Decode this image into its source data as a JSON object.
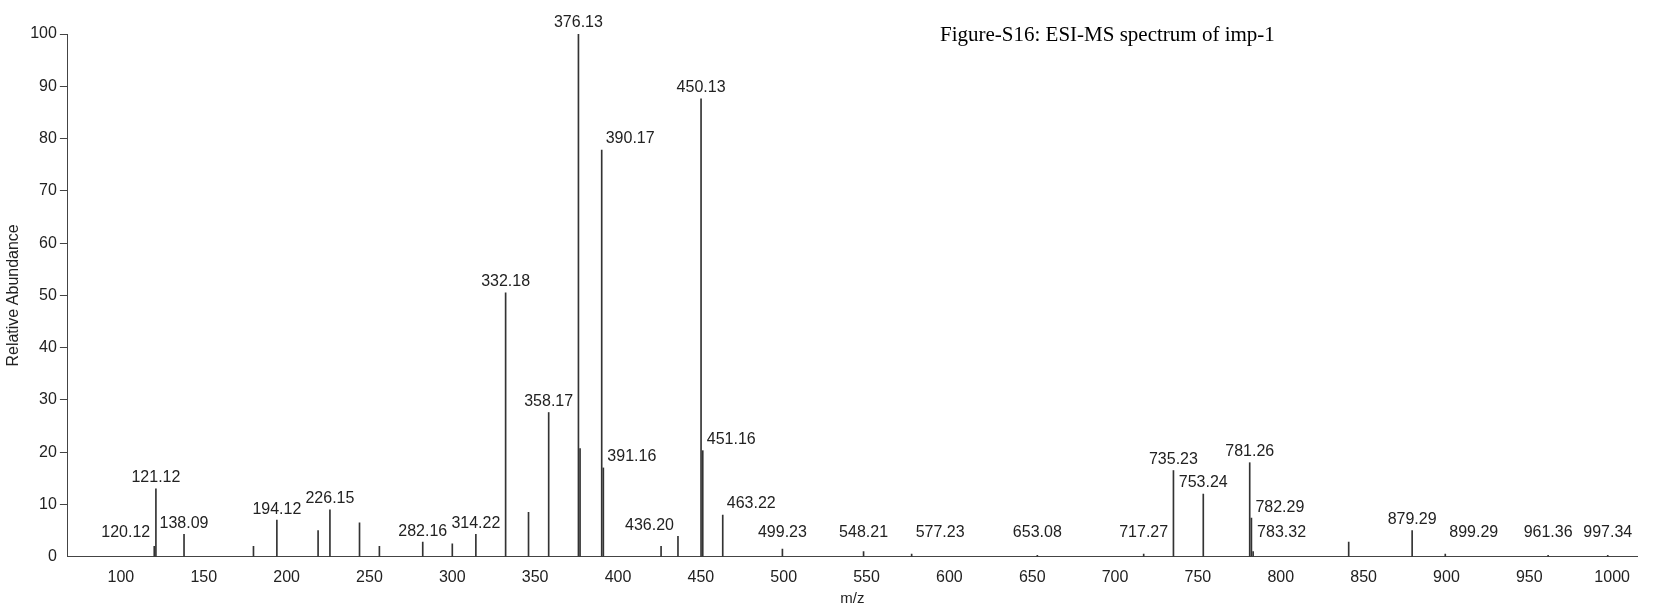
{
  "chart_data": {
    "type": "bar",
    "title": "Figure-S16: ESI-MS spectrum of imp-1",
    "xlabel": "m/z",
    "ylabel": "Relative Abundance",
    "x": [
      120.12,
      121.12,
      138.09,
      180,
      194.12,
      219,
      226.15,
      244,
      256,
      282.16,
      300,
      314.22,
      332.18,
      346,
      358.17,
      376.13,
      377.1,
      390.17,
      391.16,
      426,
      436.2,
      450.13,
      451.16,
      463.22,
      499.23,
      548.21,
      577.23,
      653.08,
      717.27,
      735.23,
      753.24,
      781.26,
      782.29,
      783.32,
      841,
      879.29,
      899.29,
      961.36,
      997.34
    ],
    "values": [
      2,
      13,
      4.3,
      2,
      7,
      5,
      9,
      6.5,
      2,
      2.8,
      2.5,
      4.3,
      50.5,
      8.5,
      27.6,
      100,
      20.7,
      77.8,
      17,
      2,
      3.9,
      87.6,
      20.3,
      8,
      1.5,
      1,
      0.5,
      0.3,
      0.5,
      16.5,
      12,
      18,
      7.4,
      1,
      2.8,
      5,
      0.5,
      0.3,
      0.3
    ],
    "color": "#333333",
    "annotations": [
      {
        "text": "120.12",
        "x": 120.12,
        "y": 2
      },
      {
        "text": "121.12",
        "x": 121.12,
        "y": 13
      },
      {
        "text": "138.09",
        "x": 138.09,
        "y": 4.3
      },
      {
        "text": "194.12",
        "x": 194.12,
        "y": 7
      },
      {
        "text": "226.15",
        "x": 226.15,
        "y": 9
      },
      {
        "text": "282.16",
        "x": 282.16,
        "y": 2.8
      },
      {
        "text": "314.22",
        "x": 314.22,
        "y": 4.3
      },
      {
        "text": "332.18",
        "x": 332.18,
        "y": 50.5
      },
      {
        "text": "358.17",
        "x": 358.17,
        "y": 27.6
      },
      {
        "text": "376.13",
        "x": 376.13,
        "y": 100
      },
      {
        "text": "390.17",
        "x": 390.17,
        "y": 77.8
      },
      {
        "text": "391.16",
        "x": 391.16,
        "y": 17
      },
      {
        "text": "436.20",
        "x": 436.2,
        "y": 3.9
      },
      {
        "text": "450.13",
        "x": 450.13,
        "y": 87.6
      },
      {
        "text": "451.16",
        "x": 451.16,
        "y": 20.3
      },
      {
        "text": "463.22",
        "x": 463.22,
        "y": 8
      },
      {
        "text": "499.23",
        "x": 499.23,
        "y": 1.5
      },
      {
        "text": "548.21",
        "x": 548.21,
        "y": 1
      },
      {
        "text": "577.23",
        "x": 577.23,
        "y": 0.5
      },
      {
        "text": "653.08",
        "x": 653.08,
        "y": 0.3
      },
      {
        "text": "717.27",
        "x": 717.27,
        "y": 0.5
      },
      {
        "text": "735.23",
        "x": 735.23,
        "y": 16.5
      },
      {
        "text": "753.24",
        "x": 753.24,
        "y": 12
      },
      {
        "text": "781.26",
        "x": 781.26,
        "y": 18
      },
      {
        "text": "782.29",
        "x": 782.29,
        "y": 7.4
      },
      {
        "text": "783.32",
        "x": 783.32,
        "y": 1
      },
      {
        "text": "879.29",
        "x": 879.29,
        "y": 5
      },
      {
        "text": "899.29",
        "x": 899.29,
        "y": 0.5
      },
      {
        "text": "961.36",
        "x": 961.36,
        "y": 0.3
      },
      {
        "text": "997.34",
        "x": 997.34,
        "y": 0.3
      }
    ],
    "xlim": [
      68,
      1015
    ],
    "xticks": [
      100,
      150,
      200,
      250,
      300,
      350,
      400,
      450,
      500,
      550,
      600,
      650,
      700,
      750,
      800,
      850,
      900,
      950,
      1000
    ],
    "ylim": [
      0,
      100
    ],
    "yticks": [
      0,
      10,
      20,
      30,
      40,
      50,
      60,
      70,
      80,
      90,
      100
    ]
  }
}
